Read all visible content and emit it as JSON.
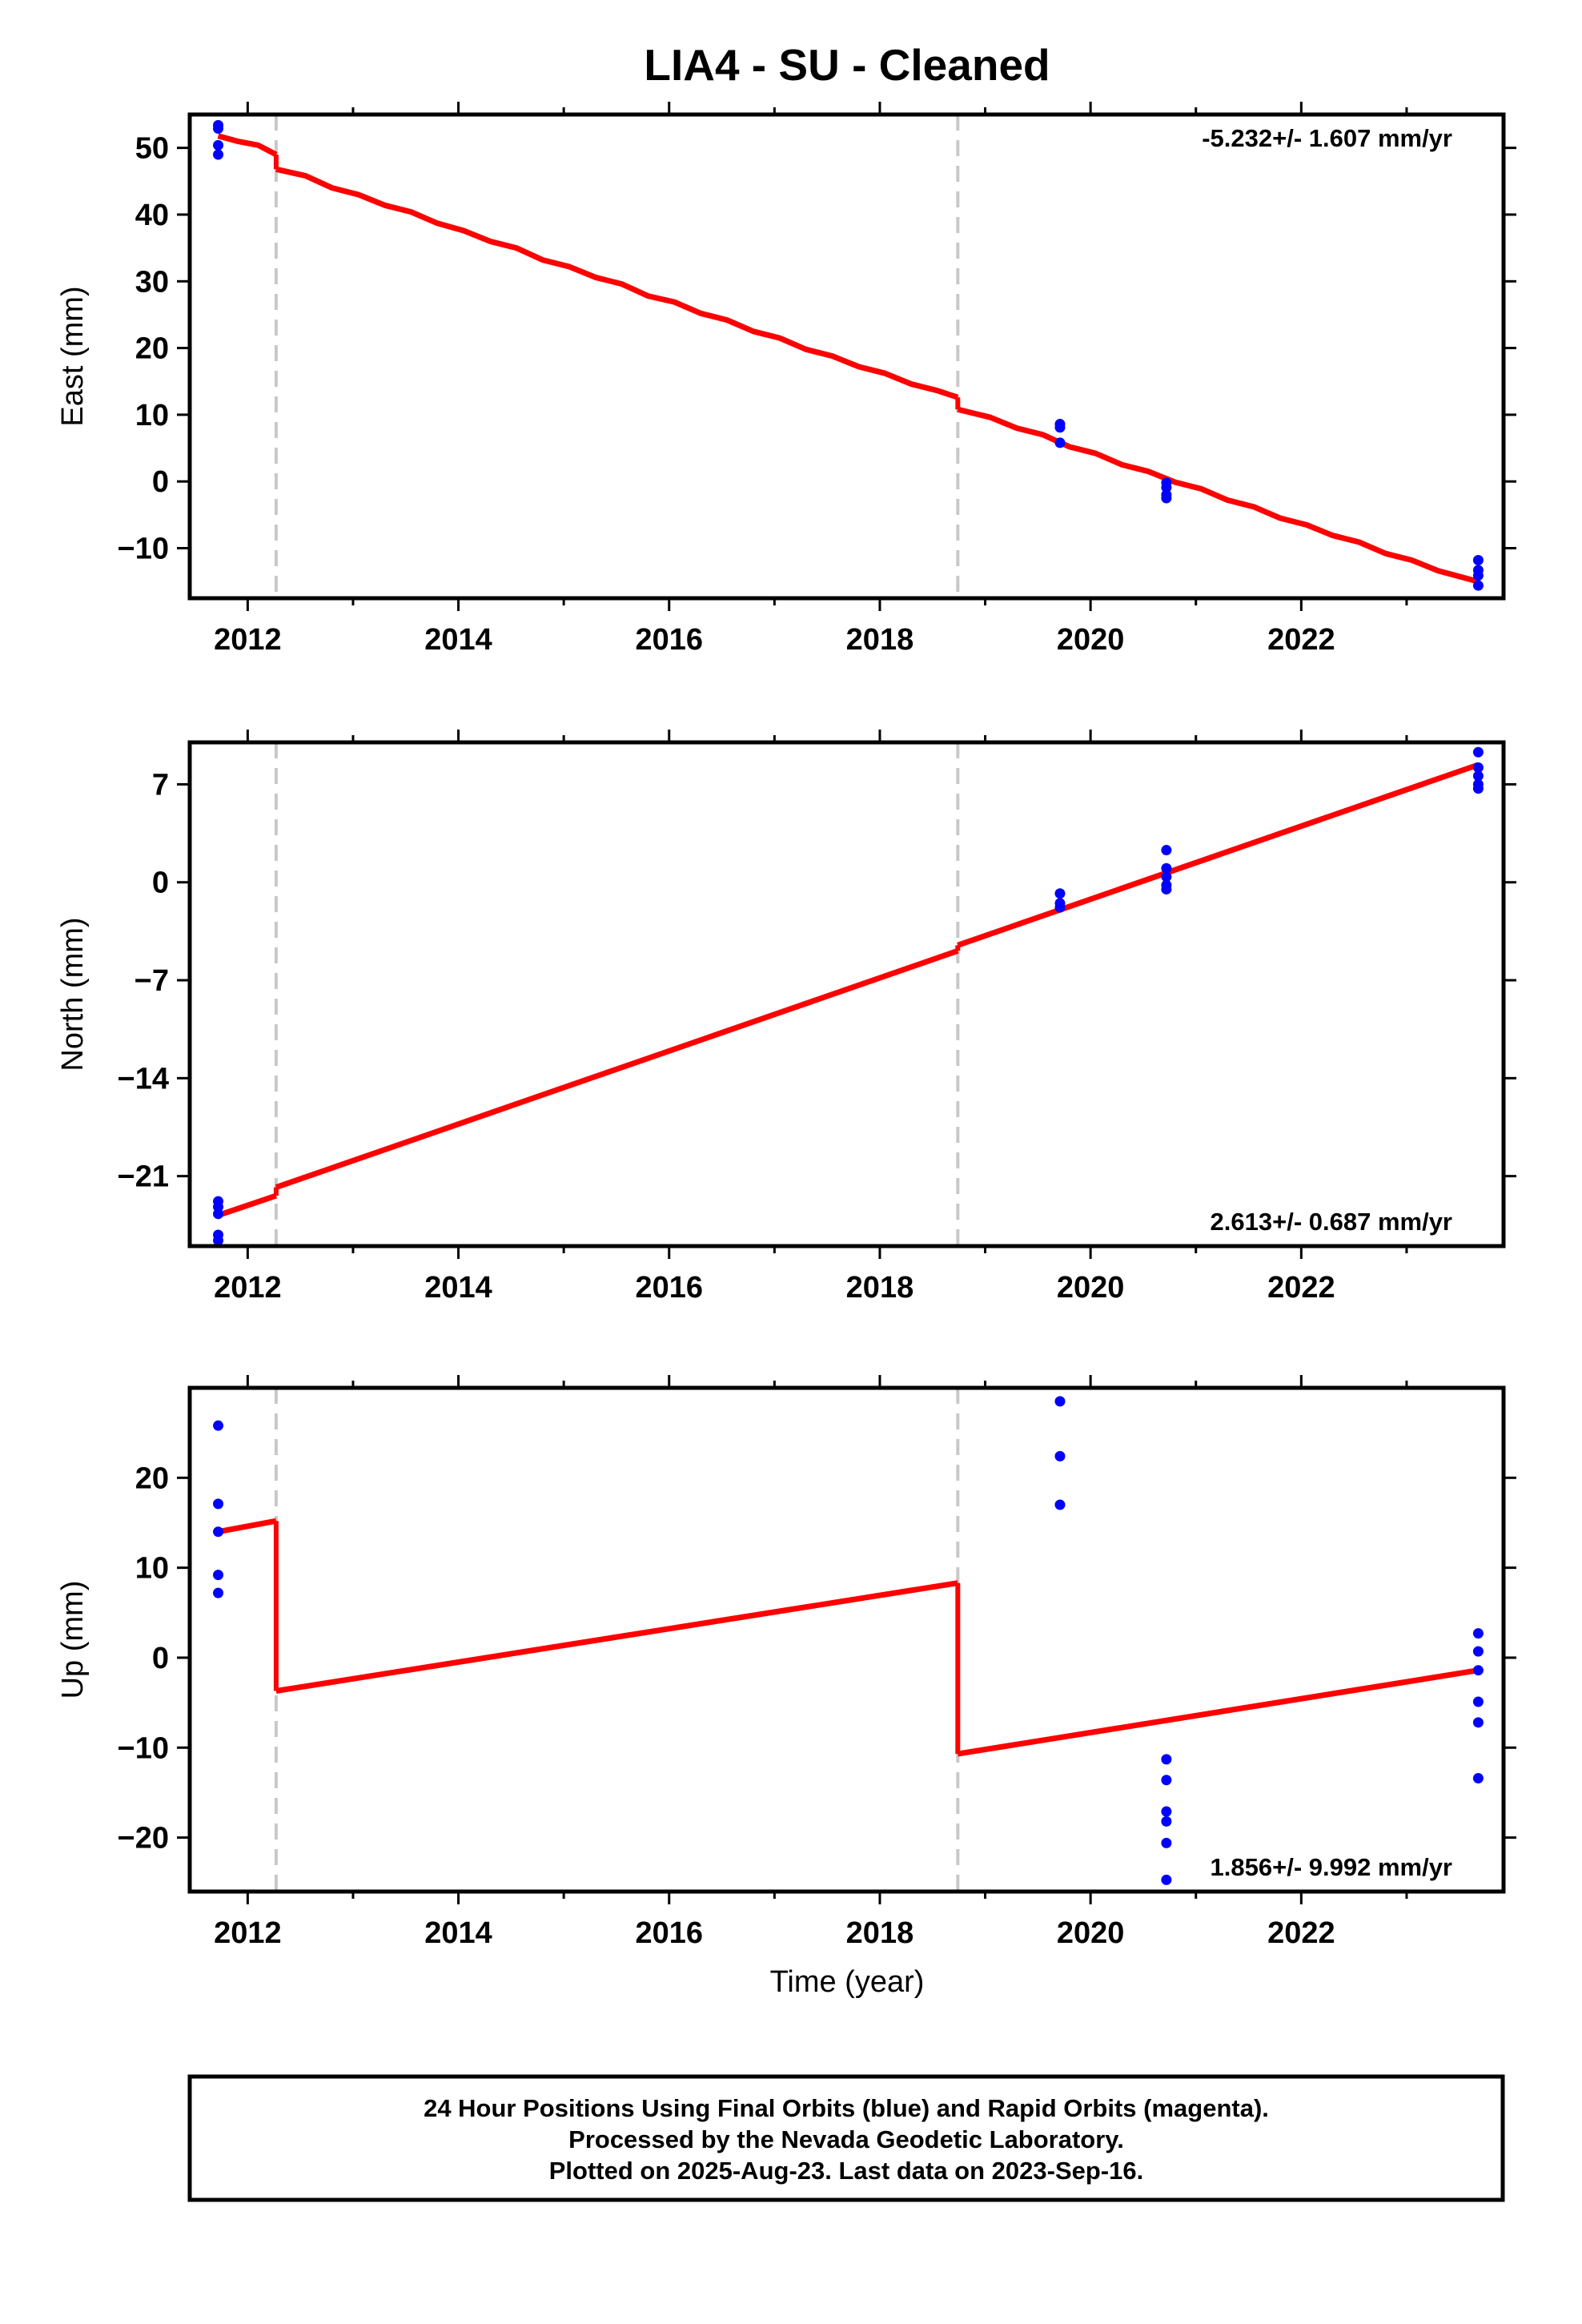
{
  "title": "LIA4  - SU - Cleaned",
  "xlabel": "Time (year)",
  "footer": {
    "line1": "24 Hour Positions Using Final Orbits (blue) and Rapid Orbits (magenta).",
    "line2": "Processed by the Nevada Geodetic Laboratory.",
    "line3": "Plotted on 2025-Aug-23. Last data on 2023-Sep-16."
  },
  "colors": {
    "data": "#0000ff",
    "model": "#ff0000",
    "breaks": "#c8c8c8",
    "frame": "#000000"
  },
  "chart_data": [
    {
      "type": "scatter",
      "ylabel": "East (mm)",
      "rate_text": "-5.232+/- 1.607 mm/yr",
      "rate_position": "top-right",
      "xlim": [
        2011.45,
        2023.92
      ],
      "ylim": [
        -17.5,
        55
      ],
      "xticks": [
        2012,
        2014,
        2016,
        2018,
        2020,
        2022
      ],
      "yticks": [
        50,
        40,
        30,
        20,
        10,
        0,
        -10
      ],
      "ytick_labels": [
        "50",
        "40",
        "30",
        "20",
        "10",
        "0",
        "−10"
      ],
      "breaks": [
        2012.27,
        2018.74
      ],
      "points": [
        [
          2011.72,
          53.4
        ],
        [
          2011.72,
          52.9
        ],
        [
          2011.72,
          50.4
        ],
        [
          2011.72,
          49.0
        ],
        [
          2019.71,
          8.6
        ],
        [
          2019.71,
          8.1
        ],
        [
          2019.71,
          5.8
        ],
        [
          2020.72,
          -0.2
        ],
        [
          2020.72,
          -0.9
        ],
        [
          2020.72,
          -2.0
        ],
        [
          2020.72,
          -2.5
        ],
        [
          2023.68,
          -11.8
        ],
        [
          2023.68,
          -13.3
        ],
        [
          2023.68,
          -14.1
        ],
        [
          2023.68,
          -15.6
        ]
      ],
      "model": [
        [
          [
            2011.72,
            51.8
          ],
          [
            2011.9,
            51.0
          ],
          [
            2012.1,
            50.4
          ],
          [
            2012.27,
            49.0
          ]
        ],
        [
          [
            2012.27,
            46.8
          ],
          [
            2012.55,
            45.8
          ],
          [
            2012.8,
            44.0
          ],
          [
            2013.05,
            43.0
          ],
          [
            2013.3,
            41.4
          ],
          [
            2013.55,
            40.4
          ],
          [
            2013.8,
            38.7
          ],
          [
            2014.05,
            37.6
          ],
          [
            2014.3,
            36.0
          ],
          [
            2014.55,
            35.0
          ],
          [
            2014.8,
            33.2
          ],
          [
            2015.05,
            32.2
          ],
          [
            2015.3,
            30.6
          ],
          [
            2015.55,
            29.6
          ],
          [
            2015.8,
            27.8
          ],
          [
            2016.05,
            26.9
          ],
          [
            2016.3,
            25.2
          ],
          [
            2016.55,
            24.2
          ],
          [
            2016.8,
            22.5
          ],
          [
            2017.05,
            21.5
          ],
          [
            2017.3,
            19.8
          ],
          [
            2017.55,
            18.8
          ],
          [
            2017.8,
            17.2
          ],
          [
            2018.05,
            16.2
          ],
          [
            2018.3,
            14.6
          ],
          [
            2018.55,
            13.6
          ],
          [
            2018.74,
            12.6
          ]
        ],
        [
          [
            2018.74,
            10.8
          ],
          [
            2019.05,
            9.6
          ],
          [
            2019.3,
            8.0
          ],
          [
            2019.55,
            7.0
          ],
          [
            2019.8,
            5.2
          ],
          [
            2020.05,
            4.2
          ],
          [
            2020.3,
            2.5
          ],
          [
            2020.55,
            1.5
          ],
          [
            2020.8,
            -0.1
          ],
          [
            2021.05,
            -1.1
          ],
          [
            2021.3,
            -2.8
          ],
          [
            2021.55,
            -3.8
          ],
          [
            2021.8,
            -5.5
          ],
          [
            2022.05,
            -6.5
          ],
          [
            2022.3,
            -8.1
          ],
          [
            2022.55,
            -9.1
          ],
          [
            2022.8,
            -10.8
          ],
          [
            2023.05,
            -11.8
          ],
          [
            2023.3,
            -13.4
          ],
          [
            2023.68,
            -15.0
          ]
        ]
      ]
    },
    {
      "type": "scatter",
      "ylabel": "North (mm)",
      "rate_text": "2.613+/- 0.687 mm/yr",
      "rate_position": "bottom-right",
      "xlim": [
        2011.45,
        2023.92
      ],
      "ylim": [
        -26,
        10
      ],
      "xticks": [
        2012,
        2014,
        2016,
        2018,
        2020,
        2022
      ],
      "yticks": [
        7,
        0,
        -7,
        -14,
        -21
      ],
      "ytick_labels": [
        "7",
        "0",
        "−7",
        "−14",
        "−21"
      ],
      "breaks": [
        2012.27,
        2018.74
      ],
      "points": [
        [
          2011.72,
          -22.8
        ],
        [
          2011.72,
          -23.2
        ],
        [
          2011.72,
          -23.7
        ],
        [
          2011.72,
          -25.2
        ],
        [
          2011.72,
          -25.6
        ],
        [
          2019.71,
          -0.8
        ],
        [
          2019.71,
          -1.5
        ],
        [
          2019.71,
          -1.8
        ],
        [
          2020.72,
          2.3
        ],
        [
          2020.72,
          1.0
        ],
        [
          2020.72,
          0.4
        ],
        [
          2020.72,
          -0.2
        ],
        [
          2020.72,
          -0.5
        ],
        [
          2023.68,
          9.3
        ],
        [
          2023.68,
          8.2
        ],
        [
          2023.68,
          7.6
        ],
        [
          2023.68,
          7.0
        ],
        [
          2023.68,
          6.7
        ]
      ],
      "model": [
        [
          [
            2011.72,
            -23.8
          ],
          [
            2012.27,
            -22.4
          ]
        ],
        [
          [
            2012.27,
            -21.8
          ],
          [
            2018.74,
            -4.9
          ]
        ],
        [
          [
            2018.74,
            -4.5
          ],
          [
            2023.68,
            8.4
          ]
        ]
      ]
    },
    {
      "type": "scatter",
      "ylabel": "Up (mm)",
      "xlabel": "Time (year)",
      "rate_text": "1.856+/- 9.992 mm/yr",
      "rate_position": "bottom-right",
      "xlim": [
        2011.45,
        2023.92
      ],
      "ylim": [
        -26,
        30
      ],
      "xticks": [
        2012,
        2014,
        2016,
        2018,
        2020,
        2022
      ],
      "yticks": [
        20,
        10,
        0,
        -10,
        -20
      ],
      "ytick_labels": [
        "20",
        "10",
        "0",
        "−10",
        "−20"
      ],
      "breaks": [
        2012.27,
        2018.74
      ],
      "points": [
        [
          2011.72,
          25.8
        ],
        [
          2011.72,
          17.1
        ],
        [
          2011.72,
          14.0
        ],
        [
          2011.72,
          9.2
        ],
        [
          2011.72,
          7.2
        ],
        [
          2019.71,
          28.5
        ],
        [
          2019.71,
          22.4
        ],
        [
          2019.71,
          17.0
        ],
        [
          2020.72,
          -11.3
        ],
        [
          2020.72,
          -13.6
        ],
        [
          2020.72,
          -17.1
        ],
        [
          2020.72,
          -18.2
        ],
        [
          2020.72,
          -20.6
        ],
        [
          2020.72,
          -24.7
        ],
        [
          2023.68,
          2.7
        ],
        [
          2023.68,
          0.7
        ],
        [
          2023.68,
          -1.4
        ],
        [
          2023.68,
          -4.9
        ],
        [
          2023.68,
          -7.2
        ],
        [
          2023.68,
          -13.4
        ]
      ],
      "model": [
        [
          [
            2011.72,
            14.0
          ],
          [
            2012.27,
            15.2
          ]
        ],
        [
          [
            2012.27,
            -3.7
          ],
          [
            2018.74,
            8.3
          ]
        ],
        [
          [
            2018.74,
            -10.7
          ],
          [
            2023.68,
            -1.4
          ]
        ]
      ]
    }
  ]
}
